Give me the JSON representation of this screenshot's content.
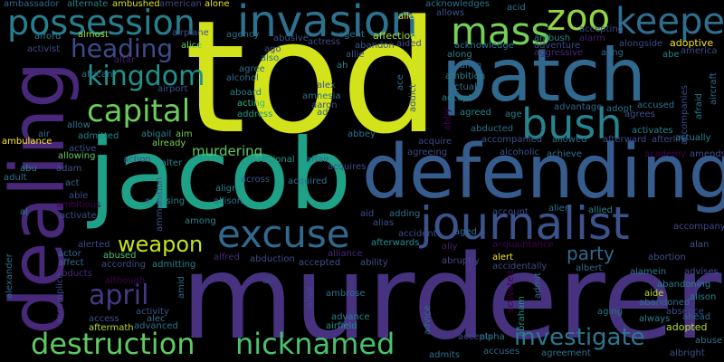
{
  "words": [
    {
      "text": "tod",
      "color": "#d2e21b"
    },
    {
      "text": "murderer",
      "color": "#46327e"
    },
    {
      "text": "jacob",
      "color": "#1fa187"
    },
    {
      "text": "defending",
      "color": "#365c8d"
    },
    {
      "text": "dealing",
      "color": "#482878"
    },
    {
      "text": "patch",
      "color": "#31688e"
    },
    {
      "text": "invasion",
      "color": "#2c728e"
    },
    {
      "text": "possession",
      "color": "#277f8e"
    },
    {
      "text": "journalist",
      "color": "#3b528b"
    },
    {
      "text": "excuse",
      "color": "#31688e"
    },
    {
      "text": "destruction",
      "color": "#5ec962"
    },
    {
      "text": "nicknamed",
      "color": "#4ac16d"
    },
    {
      "text": "mass",
      "color": "#73d056"
    },
    {
      "text": "zoo",
      "color": "#90d743"
    },
    {
      "text": "keeper",
      "color": "#2e6e8e"
    },
    {
      "text": "bush",
      "color": "#26828e"
    },
    {
      "text": "capital",
      "color": "#6ccd5a"
    },
    {
      "text": "kingdom",
      "color": "#21918c"
    },
    {
      "text": "heading",
      "color": "#3e4a89"
    },
    {
      "text": "april",
      "color": "#443983"
    },
    {
      "text": "investigate",
      "color": "#2a788e"
    },
    {
      "text": "weapon",
      "color": "#c5e021"
    },
    {
      "text": "party",
      "color": "#31688e"
    },
    {
      "text": "murdering",
      "color": "#5ec962"
    },
    {
      "text": "adoptive",
      "color": "#fde725"
    },
    {
      "text": "adopted",
      "color": "#b5de2b"
    },
    {
      "text": "affection",
      "color": "#a8db34"
    },
    {
      "text": "ambulance",
      "color": "#fde725"
    },
    {
      "text": "ambushed",
      "color": "#d8e219"
    },
    {
      "text": "alley",
      "color": "#e5e419"
    },
    {
      "text": "alone",
      "color": "#eae51a"
    },
    {
      "text": "american",
      "color": "#3e4a89"
    },
    {
      "text": "ambassador",
      "color": "#31688e"
    },
    {
      "text": "alternate",
      "color": "#26828e"
    },
    {
      "text": "almost",
      "color": "#a2da37"
    },
    {
      "text": "airplane",
      "color": "#3b528b"
    },
    {
      "text": "agency",
      "color": "#2c728e"
    },
    {
      "text": "alice",
      "color": "#6ece58"
    },
    {
      "text": "afford",
      "color": "#2a788e"
    },
    {
      "text": "activist",
      "color": "#3e4a89"
    },
    {
      "text": "altar",
      "color": "#481f70"
    },
    {
      "text": "african",
      "color": "#2c728e"
    },
    {
      "text": "airport",
      "color": "#3b528b"
    },
    {
      "text": "alcohol",
      "color": "#2e6e8e"
    },
    {
      "text": "aboard",
      "color": "#26828e"
    },
    {
      "text": "acting",
      "color": "#35b779"
    },
    {
      "text": "address",
      "color": "#1f988b"
    },
    {
      "text": "abigail",
      "color": "#26828e"
    },
    {
      "text": "aim",
      "color": "#6ece58"
    },
    {
      "text": "allow",
      "color": "#2a788e"
    },
    {
      "text": "admitted",
      "color": "#26828e"
    },
    {
      "text": "air",
      "color": "#2e6e8e"
    },
    {
      "text": "active",
      "color": "#3b528b"
    },
    {
      "text": "allowing",
      "color": "#5ec962"
    },
    {
      "text": "already",
      "color": "#7ad151"
    },
    {
      "text": "action",
      "color": "#3e4a89"
    },
    {
      "text": "abu",
      "color": "#26828e"
    },
    {
      "text": "adam",
      "color": "#3b528b"
    },
    {
      "text": "adult",
      "color": "#2c728e"
    },
    {
      "text": "act",
      "color": "#31688e"
    },
    {
      "text": "able",
      "color": "#3e4a89"
    },
    {
      "text": "ambitious",
      "color": "#440154"
    },
    {
      "text": "al",
      "color": "#26828e"
    },
    {
      "text": "activate",
      "color": "#3b528b"
    },
    {
      "text": "ambition",
      "color": "#26828e"
    },
    {
      "text": "alerted",
      "color": "#3e4a89"
    },
    {
      "text": "abused",
      "color": "#4ac16d"
    },
    {
      "text": "affect",
      "color": "#31688e"
    },
    {
      "text": "abducts",
      "color": "#482878"
    },
    {
      "text": "actor",
      "color": "#31688e"
    },
    {
      "text": "according",
      "color": "#3e4a89"
    },
    {
      "text": "although",
      "color": "#440154"
    },
    {
      "text": "admitting",
      "color": "#26828e"
    },
    {
      "text": "alfred",
      "color": "#482878"
    },
    {
      "text": "accomplice",
      "color": "#3e4a89"
    },
    {
      "text": "access",
      "color": "#3b528b"
    },
    {
      "text": "aftermath",
      "color": "#b5de2b"
    },
    {
      "text": "alec",
      "color": "#2c728e"
    },
    {
      "text": "activity",
      "color": "#3b528b"
    },
    {
      "text": "advanced",
      "color": "#2a788e"
    },
    {
      "text": "amid",
      "color": "#31688e"
    },
    {
      "text": "alexander",
      "color": "#2e6e8e"
    },
    {
      "text": "abduction",
      "color": "#3e4a89"
    },
    {
      "text": "accepted",
      "color": "#3b528b"
    },
    {
      "text": "ability",
      "color": "#3b528b"
    },
    {
      "text": "abruptly",
      "color": "#3e4a89"
    },
    {
      "text": "acquaintance",
      "color": "#440154"
    },
    {
      "text": "ally",
      "color": "#481f70"
    },
    {
      "text": "alliance",
      "color": "#482878"
    },
    {
      "text": "afterwards",
      "color": "#21918c"
    },
    {
      "text": "accident",
      "color": "#3e4a89"
    },
    {
      "text": "alert",
      "color": "#fde725"
    },
    {
      "text": "accidentally",
      "color": "#3e4a89"
    },
    {
      "text": "albert",
      "color": "#31688e"
    },
    {
      "text": "admit",
      "color": "#2e6e8e"
    },
    {
      "text": "abortion",
      "color": "#3b528b"
    },
    {
      "text": "alan",
      "color": "#3b528b"
    },
    {
      "text": "alamein",
      "color": "#2a788e"
    },
    {
      "text": "advises",
      "color": "#3b528b"
    },
    {
      "text": "abandoning",
      "color": "#26828e"
    },
    {
      "text": "aide",
      "color": "#b5de2b"
    },
    {
      "text": "abandoned",
      "color": "#2c728e"
    },
    {
      "text": "absence",
      "color": "#3e4a89"
    },
    {
      "text": "ahead",
      "color": "#31688e"
    },
    {
      "text": "always",
      "color": "#26828e"
    },
    {
      "text": "alison",
      "color": "#26828e"
    },
    {
      "text": "abuse",
      "color": "#2c728e"
    },
    {
      "text": "albright",
      "color": "#3b528b"
    },
    {
      "text": "agreement",
      "color": "#2c728e"
    },
    {
      "text": "accuses",
      "color": "#31688e"
    },
    {
      "text": "admits",
      "color": "#2c728e"
    },
    {
      "text": "accepts",
      "color": "#3e4a89"
    },
    {
      "text": "alpha",
      "color": "#2a788e"
    },
    {
      "text": "advice",
      "color": "#31688e"
    },
    {
      "text": "abraham",
      "color": "#21918c"
    },
    {
      "text": "activated",
      "color": "#440154"
    },
    {
      "text": "aging",
      "color": "#2c728e"
    },
    {
      "text": "airfield",
      "color": "#21918c"
    },
    {
      "text": "advance",
      "color": "#26828e"
    },
    {
      "text": "alive",
      "color": "#3e4a89"
    },
    {
      "text": "ambrose",
      "color": "#2c728e"
    },
    {
      "text": "ali",
      "color": "#3e4a89"
    },
    {
      "text": "ammunition",
      "color": "#3b528b"
    },
    {
      "text": "alter",
      "color": "#26828e"
    },
    {
      "text": "accusing",
      "color": "#26828e"
    },
    {
      "text": "among",
      "color": "#26828e"
    },
    {
      "text": "align",
      "color": "#26828e"
    },
    {
      "text": "allison",
      "color": "#2c728e"
    },
    {
      "text": "across",
      "color": "#3b528b"
    },
    {
      "text": "additional",
      "color": "#1f988b"
    },
    {
      "text": "affair",
      "color": "#31688e"
    },
    {
      "text": "acquired",
      "color": "#2c728e"
    },
    {
      "text": "acquires",
      "color": "#3e4a89"
    },
    {
      "text": "acquire",
      "color": "#3e4a89"
    },
    {
      "text": "agreeing",
      "color": "#3e4a89"
    },
    {
      "text": "alcoholic",
      "color": "#3b528b"
    },
    {
      "text": "achieve",
      "color": "#2c728e"
    },
    {
      "text": "abbey",
      "color": "#2c728e"
    },
    {
      "text": "aid",
      "color": "#3b528b"
    },
    {
      "text": "alias",
      "color": "#3b528b"
    },
    {
      "text": "adding",
      "color": "#2c728e"
    },
    {
      "text": "aged",
      "color": "#2c728e"
    },
    {
      "text": "account",
      "color": "#3e4a89"
    },
    {
      "text": "alien",
      "color": "#2c728e"
    },
    {
      "text": "allied",
      "color": "#26828e"
    },
    {
      "text": "academy",
      "color": "#440154"
    },
    {
      "text": "amends",
      "color": "#3e4a89"
    },
    {
      "text": "accompany",
      "color": "#3e4a89"
    },
    {
      "text": "accompanied",
      "color": "#3b528b"
    },
    {
      "text": "allowed",
      "color": "#2c728e"
    },
    {
      "text": "afterward",
      "color": "#3e4a89"
    },
    {
      "text": "afterlife",
      "color": "#3e4a89"
    },
    {
      "text": "activates",
      "color": "#26828e"
    },
    {
      "text": "actually",
      "color": "#26828e"
    },
    {
      "text": "abducted",
      "color": "#2e6e8e"
    },
    {
      "text": "agreed",
      "color": "#26828e"
    },
    {
      "text": "age",
      "color": "#26828e"
    },
    {
      "text": "advantage",
      "color": "#31688e"
    },
    {
      "text": "adopt",
      "color": "#2c728e"
    },
    {
      "text": "accused",
      "color": "#2c728e"
    },
    {
      "text": "agrees",
      "color": "#3b528b"
    },
    {
      "text": "accompanies",
      "color": "#3e4a89"
    },
    {
      "text": "afraid",
      "color": "#2a788e"
    },
    {
      "text": "aircraft",
      "color": "#31688e"
    },
    {
      "text": "accept",
      "color": "#26828e"
    },
    {
      "text": "actual",
      "color": "#2c728e"
    },
    {
      "text": "allen",
      "color": "#31688e"
    },
    {
      "text": "along",
      "color": "#26828e"
    },
    {
      "text": "acknowledge",
      "color": "#2c728e"
    },
    {
      "text": "adventure",
      "color": "#3e4a89"
    },
    {
      "text": "aggressive",
      "color": "#482878"
    },
    {
      "text": "alongside",
      "color": "#3e4a89"
    },
    {
      "text": "aang",
      "color": "#31688e"
    },
    {
      "text": "alarm",
      "color": "#481f70"
    },
    {
      "text": "accepting",
      "color": "#3e4a89"
    },
    {
      "text": "abe",
      "color": "#26828e"
    },
    {
      "text": "america",
      "color": "#3e4a89"
    },
    {
      "text": "acknowledges",
      "color": "#2c728e"
    },
    {
      "text": "allows",
      "color": "#3b528b"
    },
    {
      "text": "acid",
      "color": "#2c728e"
    },
    {
      "text": "ambush",
      "color": "#26828e"
    },
    {
      "text": "agent",
      "color": "#2c728e"
    },
    {
      "text": "aided",
      "color": "#3e4a89"
    },
    {
      "text": "abandon",
      "color": "#3b528b"
    },
    {
      "text": "allie",
      "color": "#3b528b"
    },
    {
      "text": "ah",
      "color": "#26828e"
    },
    {
      "text": "ace",
      "color": "#2c728e"
    },
    {
      "text": "addict",
      "color": "#3b528b"
    },
    {
      "text": "abby",
      "color": "#440154"
    },
    {
      "text": "alex",
      "color": "#3b528b"
    },
    {
      "text": "amnesia",
      "color": "#2c728e"
    },
    {
      "text": "aaron",
      "color": "#3b528b"
    },
    {
      "text": "ad",
      "color": "#31688e"
    },
    {
      "text": "abusive",
      "color": "#3b528b"
    },
    {
      "text": "actress",
      "color": "#3e4a89"
    },
    {
      "text": "also",
      "color": "#2c728e"
    },
    {
      "text": "agree",
      "color": "#2c728e"
    },
    {
      "text": "ago",
      "color": "#3e4a89"
    }
  ]
}
